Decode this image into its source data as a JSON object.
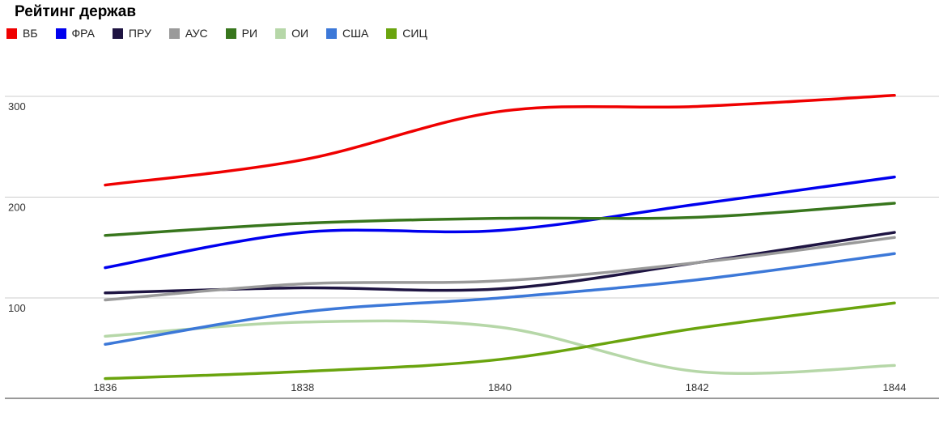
{
  "chart_data": {
    "type": "line",
    "title": "Рейтинг держав",
    "xlabel": "",
    "ylabel": "",
    "x": [
      1836,
      1838,
      1840,
      1842,
      1844
    ],
    "x_ticks": [
      "1836",
      "1838",
      "1840",
      "1842",
      "1844"
    ],
    "y_ticks": [
      "100",
      "200",
      "300"
    ],
    "ylim": [
      20,
      320
    ],
    "grid": true,
    "legend_position": "top-left",
    "smooth": true,
    "series": [
      {
        "name": "ВБ",
        "color": "#ef0000",
        "values": [
          212,
          237,
          285,
          290,
          301
        ]
      },
      {
        "name": "ФРА",
        "color": "#0000ee",
        "values": [
          130,
          165,
          167,
          193,
          220
        ]
      },
      {
        "name": "ПРУ",
        "color": "#1e1442",
        "values": [
          105,
          110,
          109,
          135,
          165
        ]
      },
      {
        "name": "АУС",
        "color": "#9a9a9a",
        "values": [
          98,
          114,
          117,
          135,
          160
        ]
      },
      {
        "name": "РИ",
        "color": "#38761d",
        "values": [
          162,
          174,
          179,
          180,
          194
        ]
      },
      {
        "name": "ОИ",
        "color": "#b6d7a8",
        "values": [
          62,
          76,
          71,
          27,
          33
        ]
      },
      {
        "name": "США",
        "color": "#3c78d8",
        "values": [
          54,
          86,
          100,
          118,
          144
        ]
      },
      {
        "name": "СИЦ",
        "color": "#6aa40e",
        "values": [
          20,
          27,
          39,
          70,
          95
        ]
      }
    ]
  }
}
